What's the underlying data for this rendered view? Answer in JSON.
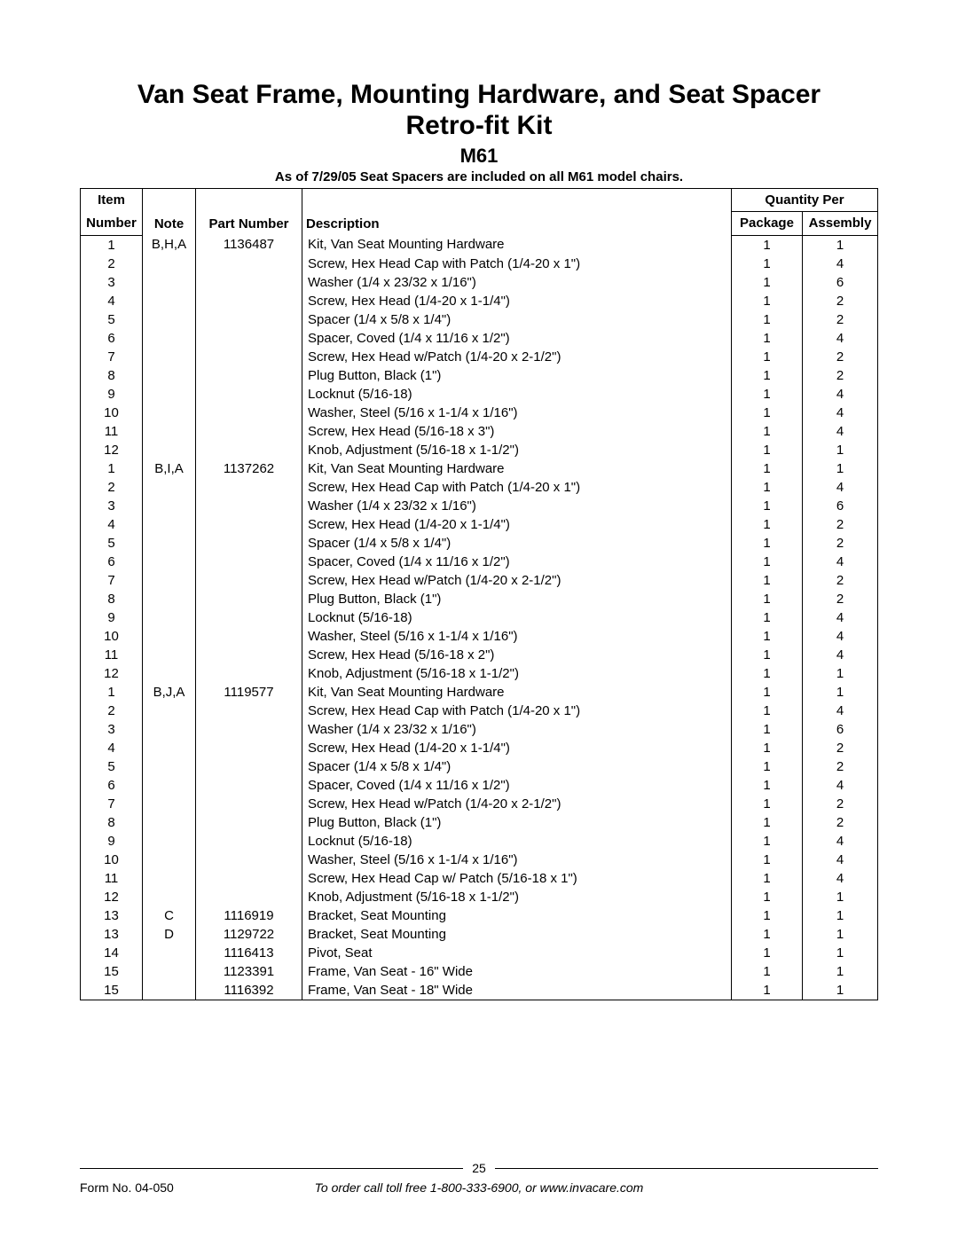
{
  "header": {
    "title_line1": "Van Seat Frame, Mounting Hardware, and Seat Spacer",
    "title_line2": "Retro-fit Kit",
    "model": "M61",
    "subnote": "As of 7/29/05 Seat Spacers are included on all M61 model chairs."
  },
  "columns": {
    "item_l1": "Item",
    "item_l2": "Number",
    "note": "Note",
    "part": "Part Number",
    "desc": "Description",
    "qty_group": "Quantity Per",
    "pkg": "Package",
    "asm": "Assembly"
  },
  "rows": [
    {
      "item": "1",
      "note": "B,H,A",
      "part": "1136487",
      "desc": "Kit, Van Seat Mounting Hardware",
      "pkg": "1",
      "asm": "1"
    },
    {
      "item": "2",
      "note": "",
      "part": "",
      "desc": "Screw, Hex Head Cap with Patch (1/4-20 x 1\")",
      "pkg": "1",
      "asm": "4"
    },
    {
      "item": "3",
      "note": "",
      "part": "",
      "desc": "Washer (1/4 x 23/32 x 1/16\")",
      "pkg": "1",
      "asm": "6"
    },
    {
      "item": "4",
      "note": "",
      "part": "",
      "desc": "Screw, Hex Head (1/4-20 x 1-1/4\")",
      "pkg": "1",
      "asm": "2"
    },
    {
      "item": "5",
      "note": "",
      "part": "",
      "desc": "Spacer (1/4 x 5/8 x 1/4\")",
      "pkg": "1",
      "asm": "2"
    },
    {
      "item": "6",
      "note": "",
      "part": "",
      "desc": "Spacer, Coved (1/4 x 11/16 x 1/2\")",
      "pkg": "1",
      "asm": "4"
    },
    {
      "item": "7",
      "note": "",
      "part": "",
      "desc": "Screw, Hex Head w/Patch (1/4-20 x 2-1/2\")",
      "pkg": "1",
      "asm": "2"
    },
    {
      "item": "8",
      "note": "",
      "part": "",
      "desc": "Plug Button, Black (1\")",
      "pkg": "1",
      "asm": "2"
    },
    {
      "item": "9",
      "note": "",
      "part": "",
      "desc": "Locknut (5/16-18)",
      "pkg": "1",
      "asm": "4"
    },
    {
      "item": "10",
      "note": "",
      "part": "",
      "desc": "Washer, Steel (5/16 x 1-1/4 x 1/16\")",
      "pkg": "1",
      "asm": "4"
    },
    {
      "item": "11",
      "note": "",
      "part": "",
      "desc": "Screw, Hex Head (5/16-18 x 3\")",
      "pkg": "1",
      "asm": "4"
    },
    {
      "item": "12",
      "note": "",
      "part": "",
      "desc": "Knob, Adjustment (5/16-18 x 1-1/2\")",
      "pkg": "1",
      "asm": "1"
    },
    {
      "item": "1",
      "note": "B,I,A",
      "part": "1137262",
      "desc": "Kit, Van Seat Mounting Hardware",
      "pkg": "1",
      "asm": "1"
    },
    {
      "item": "2",
      "note": "",
      "part": "",
      "desc": "Screw, Hex Head Cap with Patch (1/4-20 x 1\")",
      "pkg": "1",
      "asm": "4"
    },
    {
      "item": "3",
      "note": "",
      "part": "",
      "desc": "Washer (1/4 x 23/32 x 1/16\")",
      "pkg": "1",
      "asm": "6"
    },
    {
      "item": "4",
      "note": "",
      "part": "",
      "desc": "Screw, Hex Head (1/4-20 x 1-1/4\")",
      "pkg": "1",
      "asm": "2"
    },
    {
      "item": "5",
      "note": "",
      "part": "",
      "desc": "Spacer (1/4 x 5/8 x 1/4\")",
      "pkg": "1",
      "asm": "2"
    },
    {
      "item": "6",
      "note": "",
      "part": "",
      "desc": "Spacer, Coved (1/4 x 11/16 x 1/2\")",
      "pkg": "1",
      "asm": "4"
    },
    {
      "item": "7",
      "note": "",
      "part": "",
      "desc": "Screw, Hex Head w/Patch (1/4-20 x 2-1/2\")",
      "pkg": "1",
      "asm": "2"
    },
    {
      "item": "8",
      "note": "",
      "part": "",
      "desc": "Plug Button, Black (1\")",
      "pkg": "1",
      "asm": "2"
    },
    {
      "item": "9",
      "note": "",
      "part": "",
      "desc": "Locknut (5/16-18)",
      "pkg": "1",
      "asm": "4"
    },
    {
      "item": "10",
      "note": "",
      "part": "",
      "desc": "Washer, Steel (5/16 x 1-1/4 x 1/16\")",
      "pkg": "1",
      "asm": "4"
    },
    {
      "item": "11",
      "note": "",
      "part": "",
      "desc": "Screw, Hex Head (5/16-18 x 2\")",
      "pkg": "1",
      "asm": "4"
    },
    {
      "item": "12",
      "note": "",
      "part": "",
      "desc": "Knob, Adjustment (5/16-18 x 1-1/2\")",
      "pkg": "1",
      "asm": "1"
    },
    {
      "item": "1",
      "note": "B,J,A",
      "part": "1119577",
      "desc": "Kit, Van Seat Mounting Hardware",
      "pkg": "1",
      "asm": "1"
    },
    {
      "item": "2",
      "note": "",
      "part": "",
      "desc": "Screw, Hex Head Cap with Patch (1/4-20 x 1\")",
      "pkg": "1",
      "asm": "4"
    },
    {
      "item": "3",
      "note": "",
      "part": "",
      "desc": "Washer (1/4 x 23/32 x 1/16\")",
      "pkg": "1",
      "asm": "6"
    },
    {
      "item": "4",
      "note": "",
      "part": "",
      "desc": "Screw, Hex Head (1/4-20 x 1-1/4\")",
      "pkg": "1",
      "asm": "2"
    },
    {
      "item": "5",
      "note": "",
      "part": "",
      "desc": "Spacer (1/4 x 5/8 x 1/4\")",
      "pkg": "1",
      "asm": "2"
    },
    {
      "item": "6",
      "note": "",
      "part": "",
      "desc": "Spacer, Coved (1/4 x 11/16 x 1/2\")",
      "pkg": "1",
      "asm": "4"
    },
    {
      "item": "7",
      "note": "",
      "part": "",
      "desc": "Screw, Hex Head w/Patch (1/4-20 x 2-1/2\")",
      "pkg": "1",
      "asm": "2"
    },
    {
      "item": "8",
      "note": "",
      "part": "",
      "desc": "Plug Button, Black (1\")",
      "pkg": "1",
      "asm": "2"
    },
    {
      "item": "9",
      "note": "",
      "part": "",
      "desc": "Locknut (5/16-18)",
      "pkg": "1",
      "asm": "4"
    },
    {
      "item": "10",
      "note": "",
      "part": "",
      "desc": "Washer, Steel (5/16 x 1-1/4 x 1/16\")",
      "pkg": "1",
      "asm": "4"
    },
    {
      "item": "11",
      "note": "",
      "part": "",
      "desc": "Screw, Hex Head Cap w/ Patch (5/16-18 x 1\")",
      "pkg": "1",
      "asm": "4"
    },
    {
      "item": "12",
      "note": "",
      "part": "",
      "desc": "Knob, Adjustment (5/16-18 x 1-1/2\")",
      "pkg": "1",
      "asm": "1"
    },
    {
      "item": "13",
      "note": "C",
      "part": "1116919",
      "desc": "Bracket, Seat Mounting",
      "pkg": "1",
      "asm": "1"
    },
    {
      "item": "13",
      "note": "D",
      "part": "1129722",
      "desc": "Bracket, Seat Mounting",
      "pkg": "1",
      "asm": "1"
    },
    {
      "item": "14",
      "note": "",
      "part": "1116413",
      "desc": "Pivot, Seat",
      "pkg": "1",
      "asm": "1"
    },
    {
      "item": "15",
      "note": "",
      "part": "1123391",
      "desc": "Frame, Van Seat - 16\" Wide",
      "pkg": "1",
      "asm": "1"
    },
    {
      "item": "15",
      "note": "",
      "part": "1116392",
      "desc": "Frame, Van Seat - 18\" Wide",
      "pkg": "1",
      "asm": "1"
    }
  ],
  "footer": {
    "page_number": "25",
    "form_no": "Form No. 04-050",
    "order_text": "To order call toll free 1-800-333-6900, or www.invacare.com"
  }
}
